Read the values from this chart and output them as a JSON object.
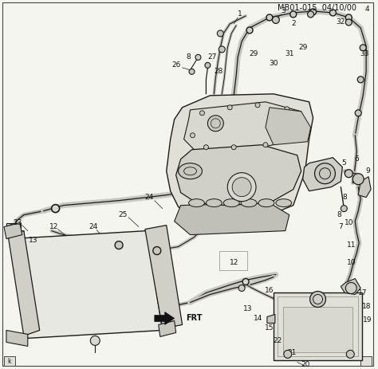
{
  "title": "MB01-015  04/10/00",
  "bg_color": "#f5f5f0",
  "line_color": "#1a1a1a",
  "label_color": "#111111",
  "frt_label": "FRT",
  "figsize": [
    4.74,
    4.63
  ],
  "dpi": 100,
  "border_color": "#555555",
  "gray_light": "#c8c8c8",
  "gray_mid": "#a0a0a0",
  "gray_dark": "#707070"
}
